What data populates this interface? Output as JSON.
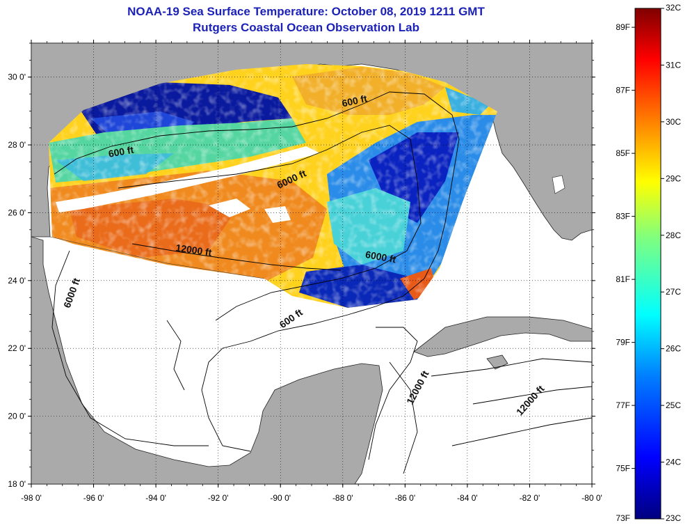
{
  "header": {
    "title": "NOAA-19 Sea Surface Temperature:  October 08, 2019 1211 GMT",
    "subtitle": "Rutgers Coastal Ocean Observation Lab"
  },
  "map": {
    "lon_range": [
      -98,
      -80
    ],
    "lat_range": [
      18,
      31
    ],
    "lon_ticks": [
      "-98 0'",
      "-96 0'",
      "-94 0'",
      "-92 0'",
      "-90 0'",
      "-88 0'",
      "-86 0'",
      "-84 0'",
      "-82 0'",
      "-80 0'"
    ],
    "lat_ticks": [
      "18 0'",
      "20 0'",
      "22 0'",
      "24 0'",
      "26 0'",
      "28 0'",
      "30 0'"
    ],
    "grid": "dotted",
    "land_color": "#aaaaaa",
    "nodata_color": "#ffffff",
    "contour_labels": [
      {
        "text": "600 ft",
        "lon": -87.6,
        "lat": 29.2,
        "angle": -12
      },
      {
        "text": "600 ft",
        "lon": -95.1,
        "lat": 27.7,
        "angle": -10
      },
      {
        "text": "6000 ft",
        "lon": -89.6,
        "lat": 26.9,
        "angle": -25
      },
      {
        "text": "12000 ft",
        "lon": -92.8,
        "lat": 24.8,
        "angle": 8
      },
      {
        "text": "6000 ft",
        "lon": -86.8,
        "lat": 24.6,
        "angle": 10
      },
      {
        "text": "6000 ft",
        "lon": -96.6,
        "lat": 23.6,
        "angle": -70
      },
      {
        "text": "600 ft",
        "lon": -89.6,
        "lat": 22.8,
        "angle": -35
      },
      {
        "text": "12000 ft",
        "lon": -85.5,
        "lat": 20.8,
        "angle": -62
      },
      {
        "text": "12000 ft",
        "lon": -81.9,
        "lat": 20.4,
        "angle": -48
      }
    ]
  },
  "colorbar": {
    "fahrenheit_labels": [
      "89F",
      "87F",
      "85F",
      "83F",
      "81F",
      "79F",
      "77F",
      "75F",
      "73F"
    ],
    "celsius_labels": [
      "32C",
      "31C",
      "30C",
      "29C",
      "28C",
      "27C",
      "26C",
      "25C",
      "24C",
      "23C"
    ],
    "range_c": [
      23,
      32
    ],
    "color_stops": [
      "#00007f",
      "#0000ff",
      "#007fff",
      "#00ffff",
      "#7fff7f",
      "#ffff00",
      "#ff7f00",
      "#ff0000",
      "#7f0000"
    ]
  }
}
